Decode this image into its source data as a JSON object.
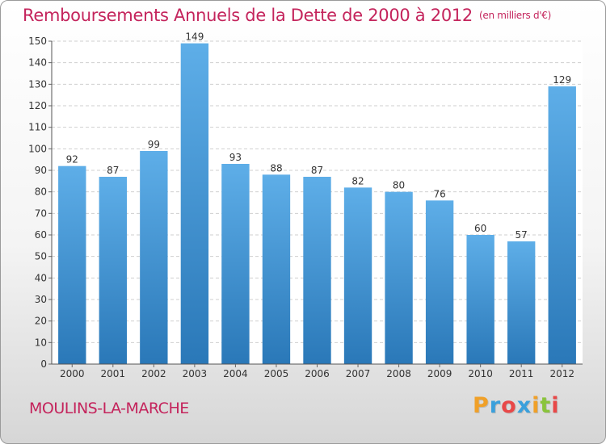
{
  "title": "Remboursements Annuels de la Dette de 2000 à 2012",
  "unit": "(en milliers d'€)",
  "place": "MOULINS-LA-MARCHE",
  "brand": {
    "letters": [
      "P",
      "r",
      "o",
      "x",
      "i",
      "t",
      "i"
    ],
    "colors": [
      "#f0a028",
      "#3aa0dc",
      "#e84848",
      "#3aa0dc",
      "#f0a028",
      "#8ac43c",
      "#e84848"
    ]
  },
  "colors": {
    "bar_top": "#5eaee8",
    "bar_bottom": "#2a78b8",
    "title": "#c4245c"
  },
  "chart_data": {
    "type": "bar",
    "categories": [
      "2000",
      "2001",
      "2002",
      "2003",
      "2004",
      "2005",
      "2006",
      "2007",
      "2008",
      "2009",
      "2010",
      "2011",
      "2012"
    ],
    "values": [
      92,
      87,
      99,
      149,
      93,
      88,
      87,
      82,
      80,
      76,
      60,
      57,
      129
    ],
    "title": "Remboursements Annuels de la Dette de 2000 à 2012",
    "ylim": [
      0,
      150
    ],
    "yticks": [
      0,
      10,
      20,
      30,
      40,
      50,
      60,
      70,
      80,
      90,
      100,
      110,
      120,
      130,
      140,
      150
    ],
    "grid": true,
    "data_labels": true
  }
}
